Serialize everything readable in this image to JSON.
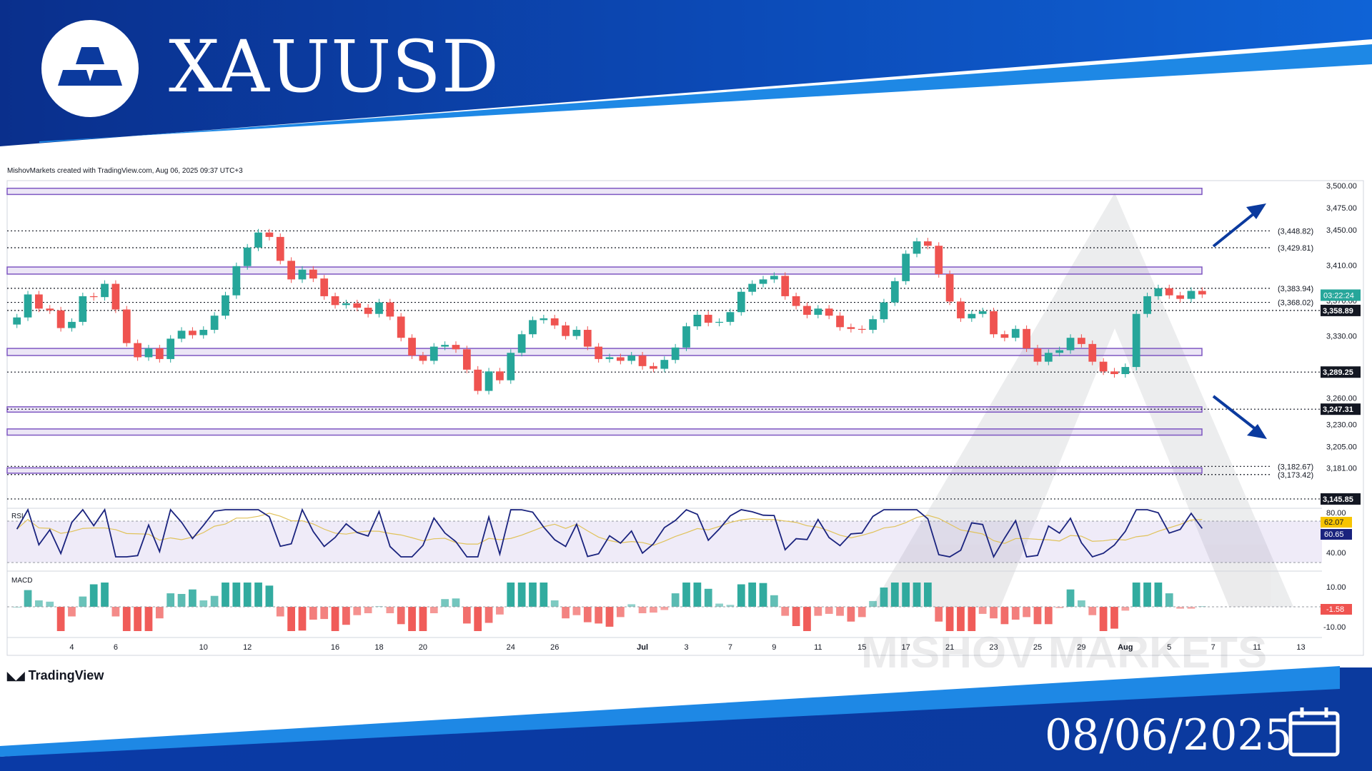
{
  "header": {
    "symbol": "XAUUSD",
    "logo_icon": "gold-bars-icon"
  },
  "credit": "MishovMarkets created with TradingView.com, Aug 06, 2025 09:37 UTC+3",
  "footer": {
    "brand": "TradingView",
    "date": "08/06/2025",
    "calendar_icon": "calendar-icon"
  },
  "watermark": "MISHOV  MARKETS",
  "colors": {
    "brand_dark": "#0b3a9e",
    "brand_light": "#1e88e5",
    "up": "#26a69a",
    "down": "#ef5350",
    "zone": "#7e57c2",
    "rsi": "#1a237e",
    "rsi_ma": "#e0c25a"
  },
  "chart_data": {
    "type": "candlestick",
    "price_axis": {
      "min": 3145,
      "max": 3500,
      "ticks": [
        "3,500.00",
        "3,475.00",
        "3,450.00",
        "3,410.00",
        "3,370.00",
        "3,330.00",
        "3,260.00",
        "3,230.00",
        "3,205.00",
        "3,181.00"
      ]
    },
    "x_ticks": [
      "4",
      "6",
      "10",
      "12",
      "16",
      "18",
      "20",
      "24",
      "26",
      "Jul",
      "3",
      "7",
      "9",
      "11",
      "15",
      "17",
      "21",
      "23",
      "25",
      "29",
      "Aug",
      "5",
      "7",
      "11",
      "13"
    ],
    "x_tick_bars": [
      5,
      9,
      17,
      21,
      29,
      33,
      37,
      45,
      49,
      57,
      61,
      65,
      69,
      73,
      77,
      81,
      85,
      89,
      93,
      97,
      101,
      105,
      109,
      113,
      117
    ],
    "closes": [
      3351,
      3377,
      3361,
      3359,
      3339,
      3346,
      3375,
      3374,
      3389,
      3360,
      3322,
      3306,
      3316,
      3304,
      3327,
      3336,
      3331,
      3337,
      3353,
      3376,
      3409,
      3430,
      3447,
      3442,
      3415,
      3394,
      3405,
      3395,
      3375,
      3365,
      3367,
      3362,
      3355,
      3368,
      3352,
      3328,
      3308,
      3302,
      3318,
      3320,
      3315,
      3292,
      3268,
      3290,
      3280,
      3311,
      3332,
      3348,
      3350,
      3342,
      3330,
      3337,
      3318,
      3304,
      3306,
      3302,
      3308,
      3296,
      3293,
      3303,
      3317,
      3341,
      3354,
      3345,
      3346,
      3357,
      3380,
      3389,
      3394,
      3398,
      3375,
      3364,
      3354,
      3361,
      3353,
      3340,
      3338,
      3337,
      3349,
      3368,
      3392,
      3423,
      3437,
      3432,
      3400,
      3369,
      3350,
      3355,
      3358,
      3332,
      3328,
      3338,
      3316,
      3301,
      3311,
      3314,
      3328,
      3321,
      3301,
      3290,
      3287,
      3295,
      3355,
      3375,
      3384,
      3376,
      3372,
      3381,
      3377
    ],
    "horizontal_levels": [
      {
        "price": 3448.82,
        "label": "3,448.82",
        "style": "plain"
      },
      {
        "price": 3429.81,
        "label": "3,429.81",
        "style": "plain"
      },
      {
        "price": 3383.94,
        "label": "3,383.94",
        "style": "plain"
      },
      {
        "price": 3368.02,
        "label": "3,368.02",
        "style": "plain"
      },
      {
        "price": 3358.89,
        "label": "3,358.89",
        "style": "dark"
      },
      {
        "price": 3289.25,
        "label": "3,289.25",
        "style": "dark"
      },
      {
        "price": 3247.31,
        "label": "3,247.31",
        "style": "dark"
      },
      {
        "price": 3182.67,
        "label": "3,182.67",
        "style": "plain"
      },
      {
        "price": 3173.42,
        "label": "3,173.42",
        "style": "plain"
      },
      {
        "price": 3145.85,
        "label": "3,145.85",
        "style": "dark"
      }
    ],
    "current_price_label": "03:22:24",
    "zones": [
      [
        3490,
        3497
      ],
      [
        3400,
        3408
      ],
      [
        3308,
        3316
      ],
      [
        3244,
        3250
      ],
      [
        3218,
        3225
      ],
      [
        3175,
        3181
      ]
    ],
    "rsi": {
      "label": "RSI",
      "ticks": [
        "80.00",
        "40.00"
      ],
      "value_label": "60.65",
      "ma_label": "62.07"
    },
    "macd": {
      "label": "MACD",
      "ticks": [
        "10.00",
        "-10.00"
      ],
      "value_label": "-1.58"
    }
  }
}
